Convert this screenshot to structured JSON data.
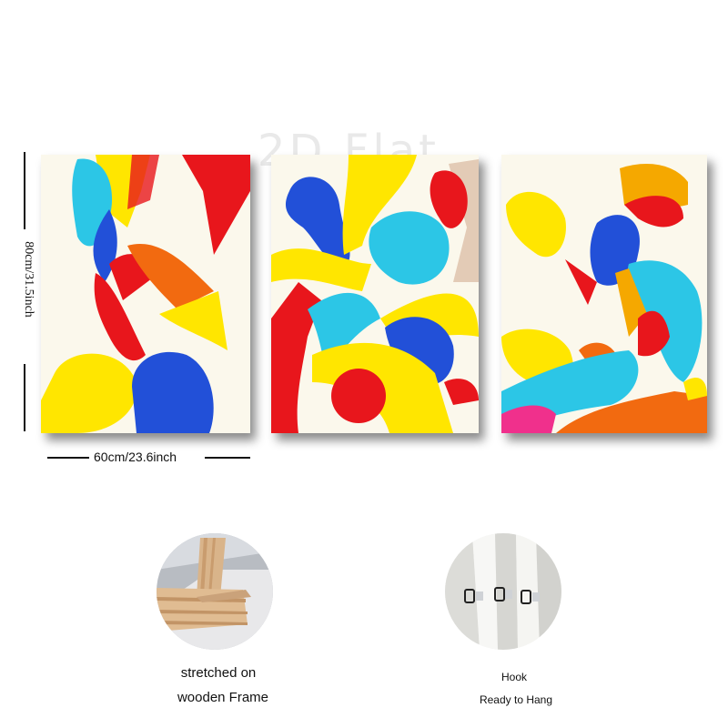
{
  "watermark": "2D Flat",
  "dimensions": {
    "height_label": "80cm/31.5inch",
    "width_label": "60cm/23.6inch"
  },
  "panels": [
    {
      "name": "abstract-canvas-left"
    },
    {
      "name": "abstract-canvas-middle"
    },
    {
      "name": "abstract-canvas-right"
    }
  ],
  "details": {
    "frame_caption_line1": "stretched on",
    "frame_caption_line2": "wooden Frame",
    "hook_caption_line1": "Hook",
    "hook_caption_line2": "Ready to Hang"
  },
  "colors": {
    "yellow": "#ffe600",
    "cyan": "#2cc6e6",
    "blue": "#2250d8",
    "red": "#e8161c",
    "orange": "#f26a10",
    "background": "#fbf8e8"
  }
}
